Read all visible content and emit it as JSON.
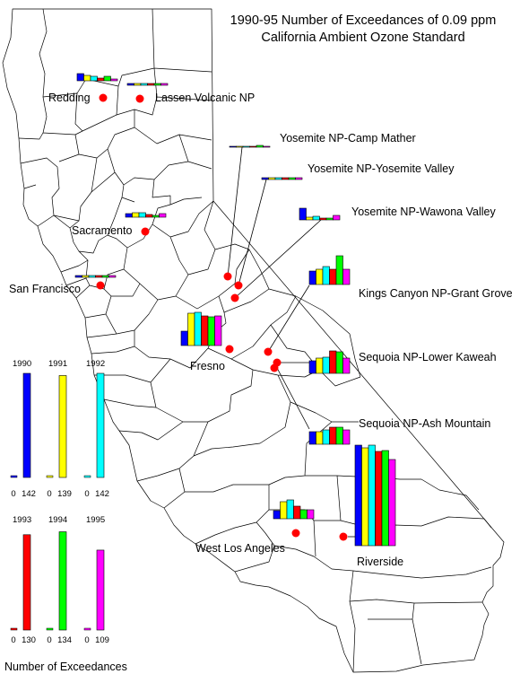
{
  "title_line1": "1990-95 Number of Exceedances of 0.09 ppm",
  "title_line2": "California Ambient Ozone Standard",
  "years": [
    "1990",
    "1991",
    "1992",
    "1993",
    "1994",
    "1995"
  ],
  "colors": [
    "#0000ff",
    "#ffff00",
    "#00ffff",
    "#ff0000",
    "#00ff00",
    "#ff00ff"
  ],
  "legend": {
    "caption": "Number of Exceedances",
    "min_label": "0",
    "max_values": [
      142,
      139,
      142,
      130,
      134,
      109
    ],
    "max_labels": [
      "142",
      "139",
      "142",
      "130",
      "134",
      "109"
    ]
  },
  "sites": [
    {
      "name": "Redding",
      "values": [
        8,
        6,
        5,
        3,
        5,
        2
      ]
    },
    {
      "name": "Lassen Volcanic NP",
      "values": [
        2,
        2,
        2,
        2,
        2,
        2
      ]
    },
    {
      "name": "Yosemite NP-Camp Mather",
      "values": [
        1,
        1,
        1,
        1,
        2,
        1
      ]
    },
    {
      "name": "Yosemite NP-Yosemite Valley",
      "values": [
        2,
        2,
        2,
        2,
        2,
        2
      ]
    },
    {
      "name": "Yosemite NP-Wawona Valley",
      "values": [
        13,
        3,
        4,
        2,
        2,
        5
      ]
    },
    {
      "name": "Sacramento",
      "values": [
        4,
        5,
        5,
        3,
        2,
        4
      ]
    },
    {
      "name": "San Francisco",
      "values": [
        2,
        2,
        2,
        2,
        2,
        2
      ]
    },
    {
      "name": "Fresno",
      "values": [
        16,
        36,
        37,
        33,
        32,
        33
      ]
    },
    {
      "name": "Kings Canyon NP-Grant Grove",
      "values": [
        15,
        17,
        20,
        17,
        32,
        17
      ]
    },
    {
      "name": "Sequoia NP-Lower Kaweah",
      "values": [
        14,
        17,
        18,
        25,
        24,
        17
      ]
    },
    {
      "name": "Sequoia NP-Ash Mountain",
      "values": [
        14,
        14,
        16,
        19,
        19,
        16
      ]
    },
    {
      "name": "West Los Angeles",
      "values": [
        9,
        19,
        21,
        14,
        10,
        10
      ]
    },
    {
      "name": "Riverside",
      "values": [
        112,
        109,
        112,
        105,
        106,
        96
      ]
    }
  ]
}
